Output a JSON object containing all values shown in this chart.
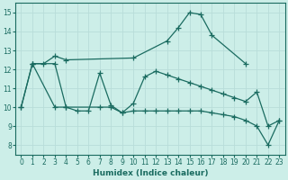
{
  "xlabel": "Humidex (Indice chaleur)",
  "background_color": "#cceee8",
  "grid_color": "#b8ddd9",
  "line_color": "#1a6b60",
  "xlim": [
    -0.5,
    23.5
  ],
  "ylim": [
    7.5,
    15.5
  ],
  "xticks": [
    0,
    1,
    2,
    3,
    4,
    5,
    6,
    7,
    8,
    9,
    10,
    11,
    12,
    13,
    14,
    15,
    16,
    17,
    18,
    19,
    20,
    21,
    22,
    23
  ],
  "yticks": [
    8,
    9,
    10,
    11,
    12,
    13,
    14,
    15
  ],
  "line1_x": [
    1,
    2,
    3,
    4,
    10,
    13,
    14,
    15,
    16,
    17,
    20
  ],
  "line1_y": [
    12.3,
    12.3,
    12.7,
    12.5,
    12.6,
    13.5,
    14.2,
    15.0,
    14.9,
    13.8,
    12.3
  ],
  "line2_x": [
    0,
    1,
    3,
    4,
    5,
    6,
    7,
    8,
    9,
    10,
    11,
    12,
    13,
    14,
    15,
    16,
    17,
    18,
    19,
    20,
    21,
    22,
    23
  ],
  "line2_y": [
    10.0,
    12.3,
    12.3,
    10.0,
    9.8,
    9.8,
    11.8,
    10.1,
    9.7,
    10.2,
    11.6,
    11.9,
    11.7,
    11.5,
    11.3,
    11.1,
    10.9,
    10.7,
    10.5,
    10.3,
    10.8,
    9.0,
    9.3
  ],
  "line3_x": [
    0,
    1,
    3,
    4,
    7,
    8,
    9,
    10,
    11,
    12,
    13,
    14,
    15,
    16,
    17,
    18,
    19,
    20,
    21,
    22,
    23
  ],
  "line3_y": [
    10.0,
    12.3,
    10.0,
    10.0,
    10.0,
    10.0,
    9.7,
    9.8,
    9.8,
    9.8,
    9.8,
    9.8,
    9.8,
    9.8,
    9.7,
    9.6,
    9.5,
    9.3,
    9.0,
    8.0,
    9.3
  ]
}
